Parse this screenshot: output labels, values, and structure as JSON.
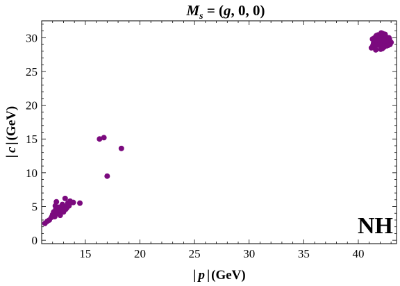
{
  "chart_data": {
    "type": "scatter",
    "title_parts": {
      "lhs_symbol": "M",
      "lhs_subscript": "s",
      "rhs": " = (",
      "arg1": "g",
      "rest": ", 0, 0)"
    },
    "xlabel_parts": {
      "left_bar": "|",
      "var": "p",
      "right_bar": "|",
      "unit": "(GeV)"
    },
    "ylabel_parts": {
      "left_bar": "|",
      "var": "c",
      "right_bar": "|",
      "unit": "(GeV)"
    },
    "annotation": "NH",
    "xlim": [
      11,
      43.5
    ],
    "ylim": [
      -0.5,
      32.5
    ],
    "xticks": [
      15,
      20,
      25,
      30,
      35,
      40
    ],
    "yticks": [
      0,
      5,
      10,
      15,
      20,
      25,
      30
    ],
    "grid": false,
    "marker_color": "#7b0a7e",
    "points": [
      [
        11.3,
        2.5
      ],
      [
        11.5,
        2.8
      ],
      [
        11.7,
        3.0
      ],
      [
        11.9,
        3.4
      ],
      [
        12.0,
        3.8
      ],
      [
        12.1,
        4.2
      ],
      [
        12.2,
        3.5
      ],
      [
        12.3,
        4.6
      ],
      [
        12.35,
        5.7
      ],
      [
        12.45,
        4.0
      ],
      [
        12.6,
        4.9
      ],
      [
        12.7,
        3.7
      ],
      [
        12.8,
        4.4
      ],
      [
        12.9,
        5.3
      ],
      [
        13.0,
        4.2
      ],
      [
        13.05,
        5.0
      ],
      [
        13.15,
        6.2
      ],
      [
        13.2,
        4.6
      ],
      [
        13.3,
        4.8
      ],
      [
        13.4,
        5.5
      ],
      [
        13.5,
        5.1
      ],
      [
        13.6,
        5.8
      ],
      [
        13.75,
        5.6
      ],
      [
        13.9,
        5.6
      ],
      [
        14.5,
        5.5
      ],
      [
        12.25,
        5.1
      ],
      [
        12.55,
        4.5
      ],
      [
        16.3,
        15.0
      ],
      [
        16.7,
        15.2
      ],
      [
        17.0,
        9.5
      ],
      [
        18.3,
        13.6
      ],
      [
        41.2,
        28.5
      ],
      [
        41.4,
        29.2
      ],
      [
        41.5,
        30.0
      ],
      [
        41.6,
        28.2
      ],
      [
        41.7,
        29.7
      ],
      [
        41.8,
        30.4
      ],
      [
        41.9,
        28.9
      ],
      [
        42.0,
        29.4
      ],
      [
        42.1,
        30.7
      ],
      [
        42.2,
        28.4
      ],
      [
        42.3,
        29.9
      ],
      [
        42.4,
        29.1
      ],
      [
        42.5,
        30.2
      ],
      [
        42.6,
        28.8
      ],
      [
        42.7,
        29.5
      ],
      [
        42.8,
        30.0
      ],
      [
        42.9,
        29.0
      ],
      [
        43.0,
        29.3
      ],
      [
        41.3,
        29.8
      ],
      [
        41.55,
        28.7
      ],
      [
        41.75,
        29.1
      ],
      [
        41.95,
        30.1
      ],
      [
        42.15,
        29.0
      ],
      [
        42.35,
        28.6
      ],
      [
        42.45,
        30.5
      ],
      [
        42.65,
        29.7
      ],
      [
        42.05,
        28.3
      ],
      [
        41.85,
        30.0
      ],
      [
        42.55,
        29.3
      ],
      [
        41.65,
        30.3
      ],
      [
        42.25,
        30.6
      ],
      [
        41.45,
        29.5
      ],
      [
        42.75,
        28.9
      ],
      [
        42.85,
        29.8
      ],
      [
        41.35,
        28.9
      ],
      [
        42.0,
        29.0
      ],
      [
        42.2,
        29.6
      ],
      [
        41.9,
        29.6
      ],
      [
        42.4,
        29.5
      ]
    ]
  }
}
